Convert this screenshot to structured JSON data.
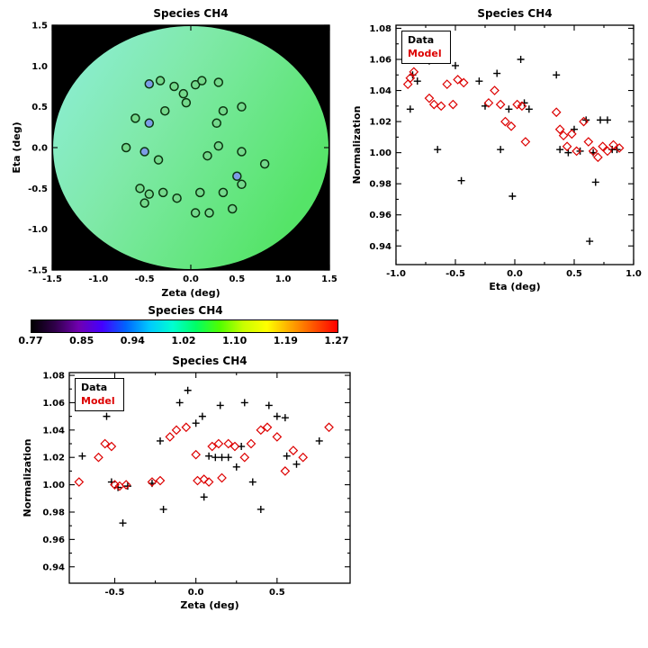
{
  "colors": {
    "data": "#000000",
    "model": "#dd0000",
    "map_bg": "#000000",
    "disk": [
      "#8FEEDC",
      "#7FE9A8",
      "#55E468"
    ],
    "map_marker_green": "#74D98C",
    "map_marker_blue": "#7D9CE6",
    "map_marker_stroke": "#0B3410",
    "rainbow": [
      "#000000",
      "#30004a",
      "#7000b0",
      "#4400ff",
      "#0064ff",
      "#00c8ff",
      "#00ffd0",
      "#00ff64",
      "#50ff00",
      "#c8ff00",
      "#ffff00",
      "#ffa800",
      "#ff5400",
      "#ff0000"
    ]
  },
  "chart_data": [
    {
      "id": "map",
      "type": "scatter",
      "title": "Species CH4",
      "xlabel": "Zeta (deg)",
      "ylabel": "Eta (deg)",
      "xlim": [
        -1.5,
        1.5
      ],
      "ylim": [
        -1.5,
        1.5
      ],
      "xticks": [
        -1.5,
        -1.0,
        -0.5,
        0.0,
        0.5,
        1.0,
        1.5
      ],
      "xtick_labels": [
        "-1.5",
        "-1.0",
        "-0.5",
        "0.0",
        "0.5",
        "1.0",
        "1.5"
      ],
      "yticks": [
        -1.5,
        -1.0,
        -0.5,
        0.0,
        0.5,
        1.0,
        1.5
      ],
      "ytick_labels": [
        "-1.5",
        "-1.0",
        "-0.5",
        "0.0",
        "0.5",
        "1.0",
        "1.5"
      ],
      "background": "black with circular model disk of radius 1.5 deg, smooth gradient cyan (upper left) to green (lower right)",
      "points": [
        [
          -0.45,
          0.78,
          "b"
        ],
        [
          -0.33,
          0.82,
          "g"
        ],
        [
          -0.18,
          0.75,
          "g"
        ],
        [
          -0.08,
          0.66,
          "g"
        ],
        [
          0.05,
          0.77,
          "g"
        ],
        [
          0.12,
          0.82,
          "g"
        ],
        [
          0.3,
          0.8,
          "g"
        ],
        [
          -0.05,
          0.55,
          "g"
        ],
        [
          -0.28,
          0.45,
          "g"
        ],
        [
          -0.6,
          0.36,
          "g"
        ],
        [
          -0.45,
          0.3,
          "b"
        ],
        [
          0.35,
          0.45,
          "g"
        ],
        [
          0.55,
          0.5,
          "g"
        ],
        [
          0.28,
          0.3,
          "g"
        ],
        [
          -0.7,
          0.0,
          "g"
        ],
        [
          -0.5,
          -0.05,
          "b"
        ],
        [
          -0.35,
          -0.15,
          "g"
        ],
        [
          0.18,
          -0.1,
          "g"
        ],
        [
          0.3,
          0.02,
          "g"
        ],
        [
          0.55,
          -0.05,
          "g"
        ],
        [
          0.8,
          -0.2,
          "g"
        ],
        [
          0.5,
          -0.35,
          "b"
        ],
        [
          0.55,
          -0.45,
          "g"
        ],
        [
          -0.55,
          -0.5,
          "g"
        ],
        [
          -0.45,
          -0.57,
          "g"
        ],
        [
          -0.3,
          -0.55,
          "g"
        ],
        [
          -0.5,
          -0.68,
          "g"
        ],
        [
          -0.15,
          -0.62,
          "g"
        ],
        [
          0.1,
          -0.55,
          "g"
        ],
        [
          0.35,
          -0.55,
          "g"
        ],
        [
          0.05,
          -0.8,
          "g"
        ],
        [
          0.2,
          -0.8,
          "g"
        ],
        [
          0.45,
          -0.75,
          "g"
        ]
      ]
    },
    {
      "id": "eta_scatter",
      "type": "scatter",
      "title": "Species CH4",
      "xlabel": "Eta (deg)",
      "ylabel": "Normalization",
      "xlim": [
        -1.0,
        1.0
      ],
      "ylim": [
        0.928,
        1.082
      ],
      "xticks": [
        -1.0,
        -0.5,
        0.0,
        0.5,
        1.0
      ],
      "xtick_labels": [
        "-1.0",
        "-0.5",
        "0.0",
        "0.5",
        "1.0"
      ],
      "yticks": [
        0.94,
        0.96,
        0.98,
        1.0,
        1.02,
        1.04,
        1.06,
        1.08
      ],
      "ytick_labels": [
        "0.94",
        "0.96",
        "0.98",
        "1.00",
        "1.02",
        "1.04",
        "1.06",
        "1.08"
      ],
      "legend_position": "top-left",
      "series": [
        {
          "name": "Data",
          "marker": "plus",
          "color": "#000000",
          "points": [
            [
              -0.88,
              1.028
            ],
            [
              -0.86,
              1.05
            ],
            [
              -0.82,
              1.046
            ],
            [
              -0.72,
              1.059
            ],
            [
              -0.65,
              1.002
            ],
            [
              -0.57,
              1.064
            ],
            [
              -0.5,
              1.056
            ],
            [
              -0.45,
              0.982
            ],
            [
              -0.3,
              1.046
            ],
            [
              -0.25,
              1.03
            ],
            [
              -0.15,
              1.051
            ],
            [
              -0.12,
              1.002
            ],
            [
              -0.05,
              1.028
            ],
            [
              -0.02,
              0.972
            ],
            [
              0.05,
              1.06
            ],
            [
              0.08,
              1.032
            ],
            [
              0.12,
              1.028
            ],
            [
              0.35,
              1.05
            ],
            [
              0.38,
              1.002
            ],
            [
              0.45,
              1.0
            ],
            [
              0.5,
              1.015
            ],
            [
              0.55,
              1.001
            ],
            [
              0.6,
              1.021
            ],
            [
              0.63,
              0.943
            ],
            [
              0.66,
              1.0
            ],
            [
              0.68,
              0.981
            ],
            [
              0.72,
              1.021
            ],
            [
              0.78,
              1.021
            ],
            [
              0.82,
              1.002
            ],
            [
              0.86,
              1.002
            ]
          ]
        },
        {
          "name": "Model",
          "marker": "diamond",
          "color": "#dd0000",
          "points": [
            [
              -0.9,
              1.044
            ],
            [
              -0.88,
              1.048
            ],
            [
              -0.85,
              1.052
            ],
            [
              -0.72,
              1.035
            ],
            [
              -0.68,
              1.031
            ],
            [
              -0.62,
              1.03
            ],
            [
              -0.57,
              1.044
            ],
            [
              -0.52,
              1.031
            ],
            [
              -0.48,
              1.047
            ],
            [
              -0.43,
              1.045
            ],
            [
              -0.22,
              1.032
            ],
            [
              -0.17,
              1.04
            ],
            [
              -0.12,
              1.031
            ],
            [
              -0.08,
              1.02
            ],
            [
              -0.03,
              1.017
            ],
            [
              0.02,
              1.031
            ],
            [
              0.06,
              1.03
            ],
            [
              0.09,
              1.007
            ],
            [
              0.35,
              1.026
            ],
            [
              0.38,
              1.015
            ],
            [
              0.41,
              1.011
            ],
            [
              0.44,
              1.004
            ],
            [
              0.48,
              1.012
            ],
            [
              0.52,
              1.001
            ],
            [
              0.58,
              1.02
            ],
            [
              0.62,
              1.007
            ],
            [
              0.66,
              1.001
            ],
            [
              0.7,
              0.997
            ],
            [
              0.74,
              1.004
            ],
            [
              0.78,
              1.001
            ],
            [
              0.83,
              1.005
            ],
            [
              0.88,
              1.003
            ]
          ]
        }
      ]
    },
    {
      "id": "colorbar",
      "type": "colorbar",
      "title": "Species CH4",
      "labels": [
        "0.77",
        "0.85",
        "0.94",
        "1.02",
        "1.10",
        "1.19",
        "1.27"
      ],
      "range": [
        0.77,
        1.27
      ]
    },
    {
      "id": "zeta_scatter",
      "type": "scatter",
      "title": "Species CH4",
      "xlabel": "Zeta (deg)",
      "ylabel": "Normalization",
      "xlim": [
        -0.78,
        0.95
      ],
      "ylim": [
        0.928,
        1.082
      ],
      "xticks": [
        -0.5,
        0.0,
        0.5
      ],
      "xtick_labels": [
        "-0.5",
        "0.0",
        "0.5"
      ],
      "yticks": [
        0.94,
        0.96,
        0.98,
        1.0,
        1.02,
        1.04,
        1.06,
        1.08
      ],
      "ytick_labels": [
        "0.94",
        "0.96",
        "0.98",
        "1.00",
        "1.02",
        "1.04",
        "1.06",
        "1.08"
      ],
      "legend_position": "top-left",
      "series": [
        {
          "name": "Data",
          "marker": "plus",
          "color": "#000000",
          "points": [
            [
              -0.7,
              1.021
            ],
            [
              -0.55,
              1.05
            ],
            [
              -0.52,
              1.002
            ],
            [
              -0.48,
              0.998
            ],
            [
              -0.45,
              0.972
            ],
            [
              -0.42,
              0.999
            ],
            [
              -0.27,
              1.001
            ],
            [
              -0.22,
              1.032
            ],
            [
              -0.2,
              0.982
            ],
            [
              -0.1,
              1.06
            ],
            [
              -0.05,
              1.069
            ],
            [
              0.0,
              1.045
            ],
            [
              0.04,
              1.05
            ],
            [
              0.05,
              0.991
            ],
            [
              0.08,
              1.021
            ],
            [
              0.12,
              1.02
            ],
            [
              0.16,
              1.02
            ],
            [
              0.15,
              1.058
            ],
            [
              0.2,
              1.02
            ],
            [
              0.25,
              1.013
            ],
            [
              0.28,
              1.028
            ],
            [
              0.3,
              1.06
            ],
            [
              0.35,
              1.002
            ],
            [
              0.4,
              0.982
            ],
            [
              0.45,
              1.058
            ],
            [
              0.5,
              1.05
            ],
            [
              0.55,
              1.049
            ],
            [
              0.56,
              1.021
            ],
            [
              0.62,
              1.015
            ],
            [
              0.76,
              1.032
            ]
          ]
        },
        {
          "name": "Model",
          "marker": "diamond",
          "color": "#dd0000",
          "points": [
            [
              -0.72,
              1.002
            ],
            [
              -0.6,
              1.02
            ],
            [
              -0.56,
              1.03
            ],
            [
              -0.52,
              1.028
            ],
            [
              -0.5,
              1.0
            ],
            [
              -0.47,
              0.999
            ],
            [
              -0.43,
              1.0
            ],
            [
              -0.27,
              1.002
            ],
            [
              -0.22,
              1.003
            ],
            [
              -0.16,
              1.035
            ],
            [
              -0.12,
              1.04
            ],
            [
              -0.06,
              1.042
            ],
            [
              0.0,
              1.022
            ],
            [
              0.01,
              1.003
            ],
            [
              0.05,
              1.004
            ],
            [
              0.08,
              1.002
            ],
            [
              0.1,
              1.028
            ],
            [
              0.14,
              1.03
            ],
            [
              0.16,
              1.005
            ],
            [
              0.2,
              1.03
            ],
            [
              0.24,
              1.028
            ],
            [
              0.3,
              1.02
            ],
            [
              0.34,
              1.03
            ],
            [
              0.4,
              1.04
            ],
            [
              0.44,
              1.042
            ],
            [
              0.5,
              1.035
            ],
            [
              0.55,
              1.01
            ],
            [
              0.6,
              1.025
            ],
            [
              0.66,
              1.02
            ],
            [
              0.82,
              1.042
            ]
          ]
        }
      ]
    }
  ]
}
